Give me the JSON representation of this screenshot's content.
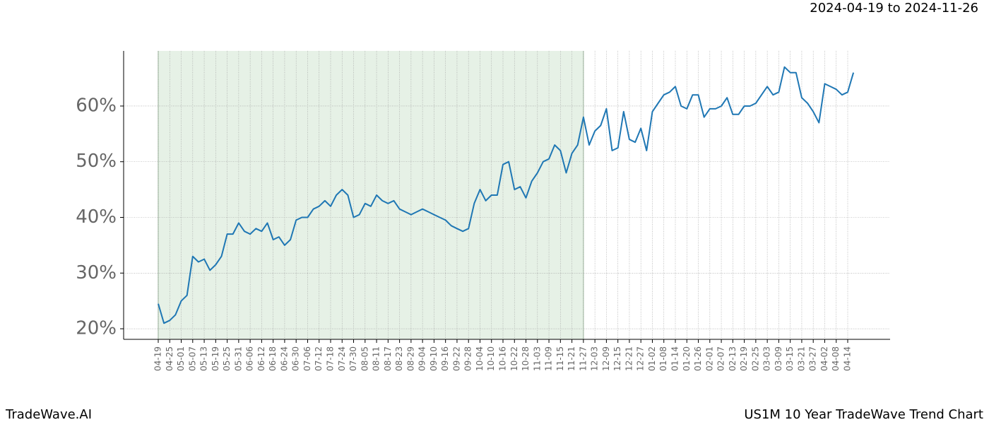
{
  "chart_data": {
    "type": "line",
    "date_range": "2024-04-19 to 2024-11-26",
    "brand": "TradeWave.AI",
    "caption": "US1M 10 Year TradeWave Trend Chart",
    "categories": [
      "04-19",
      null,
      "04-25",
      null,
      "05-01",
      null,
      "05-07",
      null,
      "05-13",
      null,
      "05-19",
      null,
      "05-25",
      null,
      "05-31",
      null,
      "06-06",
      null,
      "06-12",
      null,
      "06-18",
      null,
      "06-24",
      null,
      "06-30",
      null,
      "07-06",
      null,
      "07-12",
      null,
      "07-18",
      null,
      "07-24",
      null,
      "07-30",
      null,
      "08-05",
      null,
      "08-11",
      null,
      "08-17",
      null,
      "08-23",
      null,
      "08-29",
      null,
      "09-04",
      null,
      "09-10",
      null,
      "09-16",
      null,
      "09-22",
      null,
      "09-28",
      null,
      "10-04",
      null,
      "10-10",
      null,
      "10-16",
      null,
      "10-22",
      null,
      "10-28",
      null,
      "11-03",
      null,
      "11-09",
      null,
      "11-15",
      null,
      "11-21",
      null,
      "11-27",
      null,
      "12-03",
      null,
      "12-09",
      null,
      "12-15",
      null,
      "12-21",
      null,
      "12-27",
      null,
      "01-02",
      null,
      "01-08",
      null,
      "01-14",
      null,
      "01-20",
      null,
      "01-26",
      null,
      "02-01",
      null,
      "02-07",
      null,
      "02-13",
      null,
      "02-19",
      null,
      "02-25",
      null,
      "03-03",
      null,
      "03-09",
      null,
      "03-15",
      null,
      "03-21",
      null,
      "03-27",
      null,
      "04-02",
      null,
      "04-08",
      null,
      "04-14",
      null
    ],
    "values": [
      24.5,
      21,
      21.5,
      22.5,
      25,
      26,
      33,
      32,
      32.5,
      30.5,
      31.5,
      33,
      37,
      37,
      39,
      37.5,
      37,
      38,
      37.5,
      39,
      36,
      36.5,
      35,
      36,
      39.5,
      40,
      40,
      41.5,
      42,
      43,
      42,
      44,
      45,
      44,
      40,
      40.5,
      42.5,
      42,
      44,
      43,
      42.5,
      43,
      41.5,
      41,
      40.5,
      41,
      41.5,
      41,
      40.5,
      40,
      39.5,
      38.5,
      38,
      37.5,
      38,
      42.5,
      45,
      43,
      44,
      44,
      49.5,
      50,
      45,
      45.5,
      43.5,
      46.5,
      48,
      50,
      50.5,
      53,
      52,
      48,
      51.5,
      53,
      58,
      53,
      55.5,
      56.5,
      59.5,
      52,
      52.5,
      59,
      54,
      53.5,
      56,
      52,
      59,
      60.5,
      62,
      62.5,
      63.5,
      60,
      59.5,
      62,
      62,
      58,
      59.5,
      59.5,
      60,
      61.5,
      58.5,
      58.5,
      60,
      60,
      60.5,
      62,
      63.5,
      62,
      62.5,
      67,
      66,
      66,
      61.5,
      60.5,
      59,
      57,
      64,
      63.5,
      63,
      62,
      62.5,
      66
    ],
    "color": "#1f77b4",
    "shaded_range": [
      "04-19",
      "11-27"
    ],
    "shade_color": "#e6f1e6",
    "ylim": [
      18.1,
      69.9
    ],
    "yticks": [
      {
        "value": 20,
        "label": "20%"
      },
      {
        "value": 30,
        "label": "30%"
      },
      {
        "value": 40,
        "label": "40%"
      },
      {
        "value": 50,
        "label": "50%"
      },
      {
        "value": 60,
        "label": "60%"
      }
    ],
    "grid": true
  }
}
